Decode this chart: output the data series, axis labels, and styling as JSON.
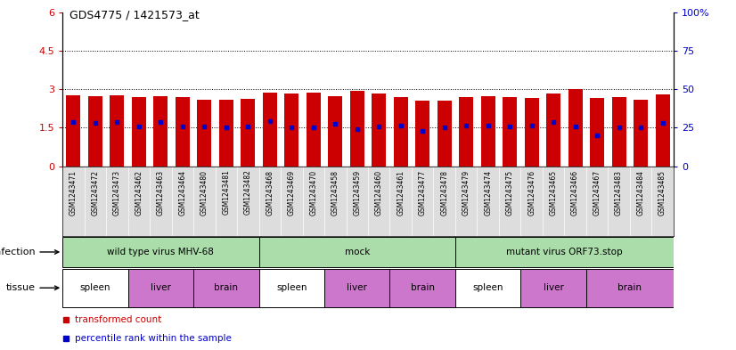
{
  "title": "GDS4775 / 1421573_at",
  "samples": [
    "GSM1243471",
    "GSM1243472",
    "GSM1243473",
    "GSM1243462",
    "GSM1243463",
    "GSM1243464",
    "GSM1243480",
    "GSM1243481",
    "GSM1243482",
    "GSM1243468",
    "GSM1243469",
    "GSM1243470",
    "GSM1243458",
    "GSM1243459",
    "GSM1243460",
    "GSM1243461",
    "GSM1243477",
    "GSM1243478",
    "GSM1243479",
    "GSM1243474",
    "GSM1243475",
    "GSM1243476",
    "GSM1243465",
    "GSM1243466",
    "GSM1243467",
    "GSM1243483",
    "GSM1243484",
    "GSM1243485"
  ],
  "transformed_counts": [
    2.75,
    2.72,
    2.75,
    2.7,
    2.73,
    2.68,
    2.6,
    2.6,
    2.63,
    2.88,
    2.83,
    2.88,
    2.72,
    2.93,
    2.83,
    2.7,
    2.55,
    2.55,
    2.7,
    2.72,
    2.7,
    2.65,
    2.85,
    3.02,
    2.65,
    2.68,
    2.6,
    2.8
  ],
  "percentile_ranks_display": [
    1.72,
    1.68,
    1.72,
    1.55,
    1.72,
    1.55,
    1.55,
    1.5,
    1.55,
    1.75,
    1.5,
    1.5,
    1.65,
    1.45,
    1.55,
    1.57,
    1.37,
    1.53,
    1.57,
    1.57,
    1.55,
    1.57,
    1.72,
    1.55,
    1.22,
    1.52,
    1.53,
    1.7
  ],
  "bar_color": "#cc0000",
  "dot_color": "#0000cc",
  "ylim_left": [
    0,
    6
  ],
  "ylim_right": [
    0,
    100
  ],
  "yticks_left": [
    0,
    1.5,
    3.0,
    4.5,
    6.0
  ],
  "yticks_right": [
    0,
    25,
    50,
    75,
    100
  ],
  "ytick_labels_left": [
    "0",
    "1.5",
    "3",
    "4.5",
    "6"
  ],
  "ytick_labels_right": [
    "0",
    "25",
    "50",
    "75",
    "100%"
  ],
  "grid_values": [
    1.5,
    3.0,
    4.5
  ],
  "infection_groups": [
    {
      "label": "wild type virus MHV-68",
      "start": 0,
      "end": 9,
      "color": "#aaddaa"
    },
    {
      "label": "mock",
      "start": 9,
      "end": 18,
      "color": "#aaddaa"
    },
    {
      "label": "mutant virus ORF73.stop",
      "start": 18,
      "end": 28,
      "color": "#aaddaa"
    }
  ],
  "tissue_groups": [
    {
      "label": "spleen",
      "start": 0,
      "end": 3,
      "color": "#ffffff"
    },
    {
      "label": "liver",
      "start": 3,
      "end": 6,
      "color": "#cc77cc"
    },
    {
      "label": "brain",
      "start": 6,
      "end": 9,
      "color": "#cc77cc"
    },
    {
      "label": "spleen",
      "start": 9,
      "end": 12,
      "color": "#ffffff"
    },
    {
      "label": "liver",
      "start": 12,
      "end": 15,
      "color": "#cc77cc"
    },
    {
      "label": "brain",
      "start": 15,
      "end": 18,
      "color": "#cc77cc"
    },
    {
      "label": "spleen",
      "start": 18,
      "end": 21,
      "color": "#ffffff"
    },
    {
      "label": "liver",
      "start": 21,
      "end": 24,
      "color": "#cc77cc"
    },
    {
      "label": "brain",
      "start": 24,
      "end": 28,
      "color": "#cc77cc"
    }
  ]
}
